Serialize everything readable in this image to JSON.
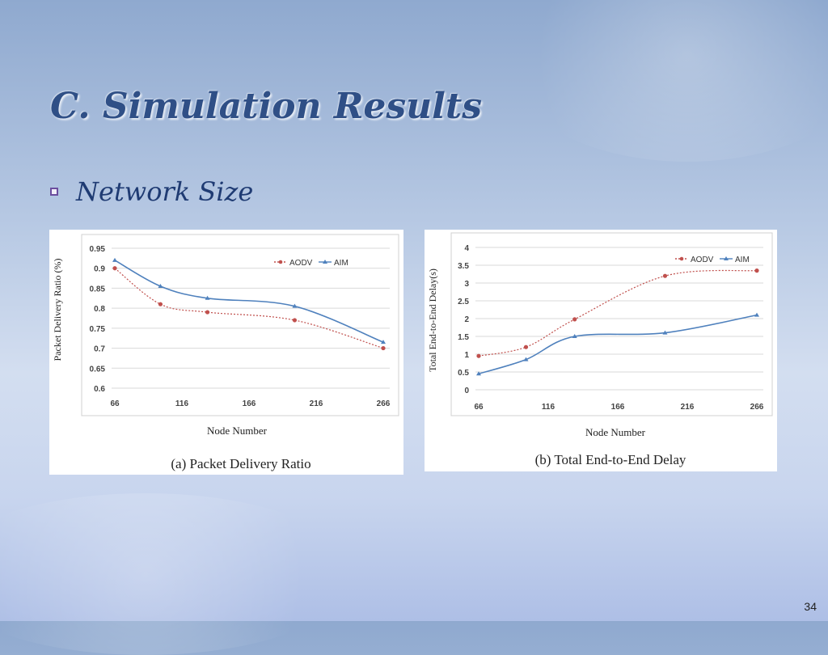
{
  "slide": {
    "title": "C. Simulation Results",
    "bullet": "Network Size",
    "page_number": "34"
  },
  "chart_data": [
    {
      "type": "line",
      "caption": "(a) Packet Delivery Ratio",
      "xlabel": "Node Number",
      "ylabel": "Packet Delivery Ratio (%)",
      "xticks": [
        66,
        116,
        166,
        216,
        266
      ],
      "yticks": [
        0.6,
        0.65,
        0.7,
        0.75,
        0.8,
        0.85,
        0.9,
        0.95
      ],
      "xlim": [
        66,
        266
      ],
      "ylim": [
        0.6,
        0.95
      ],
      "legend_position": "top-right",
      "series": [
        {
          "name": "AODV",
          "color": "#c0504d",
          "style": "dotted",
          "x": [
            66,
            100,
            135,
            200,
            266
          ],
          "y": [
            0.9,
            0.81,
            0.79,
            0.77,
            0.7
          ]
        },
        {
          "name": "AIM",
          "color": "#4f81bd",
          "style": "solid",
          "x": [
            66,
            100,
            135,
            200,
            266
          ],
          "y": [
            0.92,
            0.855,
            0.825,
            0.805,
            0.715
          ]
        }
      ]
    },
    {
      "type": "line",
      "caption": "(b) Total End-to-End Delay",
      "xlabel": "Node Number",
      "ylabel": "Total End-to-End Delay(s)",
      "xticks": [
        66,
        116,
        166,
        216,
        266
      ],
      "yticks": [
        0,
        0.5,
        1,
        1.5,
        2,
        2.5,
        3,
        3.5,
        4
      ],
      "xlim": [
        66,
        266
      ],
      "ylim": [
        0,
        4
      ],
      "legend_position": "top-right",
      "series": [
        {
          "name": "AODV",
          "color": "#c0504d",
          "style": "dotted",
          "x": [
            66,
            100,
            135,
            200,
            266
          ],
          "y": [
            0.95,
            1.2,
            1.98,
            3.2,
            3.35
          ]
        },
        {
          "name": "AIM",
          "color": "#4f81bd",
          "style": "solid",
          "x": [
            66,
            100,
            135,
            200,
            266
          ],
          "y": [
            0.45,
            0.85,
            1.5,
            1.6,
            2.1
          ]
        }
      ]
    }
  ]
}
